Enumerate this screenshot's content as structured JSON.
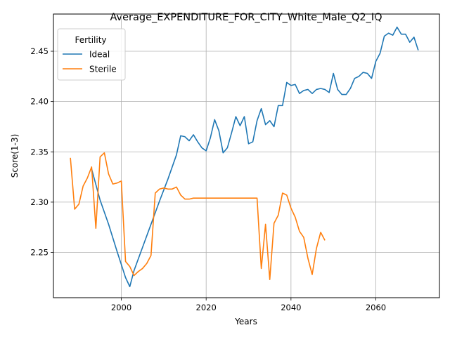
{
  "chart_data": {
    "type": "line",
    "title": "Average_EXPENDITURE_FOR_CITY_White_Male_Q2_IQ",
    "xlabel": "Years",
    "ylabel": "Score(1-3)",
    "xlim": [
      1984,
      2075
    ],
    "ylim": [
      2.205,
      2.487
    ],
    "xticks": [
      2000,
      2020,
      2040,
      2060
    ],
    "yticks": [
      2.25,
      2.3,
      2.35,
      2.4,
      2.45
    ],
    "ytick_labels": [
      "2.25",
      "2.30",
      "2.35",
      "2.40",
      "2.45"
    ],
    "grid": true,
    "legend": {
      "title": "Fertility",
      "position": "top-left"
    },
    "series": [
      {
        "name": "Ideal",
        "color": "#1f77b4",
        "x": [
          1993,
          1995,
          1997,
          1999,
          2001,
          2002,
          2003,
          2005,
          2007,
          2009,
          2011,
          2013,
          2014,
          2015,
          2016,
          2017,
          2018,
          2019,
          2020,
          2021,
          2022,
          2023,
          2024,
          2025,
          2026,
          2027,
          2028,
          2029,
          2030,
          2031,
          2032,
          2033,
          2034,
          2035,
          2036,
          2037,
          2038,
          2039,
          2040,
          2041,
          2042,
          2043,
          2044,
          2045,
          2046,
          2047,
          2048,
          2049,
          2050,
          2051,
          2052,
          2053,
          2054,
          2055,
          2056,
          2057,
          2058,
          2059,
          2060,
          2061,
          2062,
          2063,
          2064,
          2065,
          2066,
          2067,
          2068,
          2069,
          2070
        ],
        "values": [
          2.333,
          2.302,
          2.278,
          2.251,
          2.225,
          2.216,
          2.232,
          2.255,
          2.278,
          2.301,
          2.323,
          2.347,
          2.366,
          2.365,
          2.361,
          2.367,
          2.36,
          2.354,
          2.351,
          2.364,
          2.382,
          2.371,
          2.349,
          2.354,
          2.369,
          2.385,
          2.376,
          2.385,
          2.358,
          2.36,
          2.381,
          2.393,
          2.377,
          2.381,
          2.375,
          2.396,
          2.396,
          2.419,
          2.416,
          2.417,
          2.408,
          2.411,
          2.412,
          2.408,
          2.412,
          2.413,
          2.412,
          2.409,
          2.428,
          2.412,
          2.407,
          2.407,
          2.413,
          2.423,
          2.425,
          2.429,
          2.428,
          2.423,
          2.44,
          2.448,
          2.465,
          2.468,
          2.466,
          2.474,
          2.467,
          2.467,
          2.459,
          2.464,
          2.451
        ]
      },
      {
        "name": "Sterile",
        "color": "#ff7f0e",
        "x": [
          1988,
          1989,
          1990,
          1991,
          1992,
          1993,
          1994,
          1995,
          1996,
          1997,
          1998,
          1999,
          2000,
          2001,
          2002,
          2003,
          2004,
          2005,
          2006,
          2007,
          2008,
          2009,
          2010,
          2011,
          2012,
          2013,
          2014,
          2015,
          2016,
          2017,
          2018,
          2019,
          2020,
          2021,
          2022,
          2023,
          2024,
          2025,
          2026,
          2027,
          2028,
          2029,
          2030,
          2031,
          2032,
          2033,
          2034,
          2035,
          2036,
          2037,
          2038,
          2039,
          2040,
          2041,
          2042,
          2043,
          2044,
          2045,
          2046,
          2047,
          2048
        ],
        "values": [
          2.344,
          2.293,
          2.298,
          2.316,
          2.324,
          2.335,
          2.274,
          2.345,
          2.349,
          2.328,
          2.318,
          2.319,
          2.321,
          2.241,
          2.236,
          2.227,
          2.231,
          2.234,
          2.239,
          2.247,
          2.309,
          2.313,
          2.314,
          2.313,
          2.313,
          2.315,
          2.307,
          2.303,
          2.303,
          2.304,
          2.304,
          2.304,
          2.304,
          2.304,
          2.304,
          2.304,
          2.304,
          2.304,
          2.304,
          2.304,
          2.304,
          2.304,
          2.304,
          2.304,
          2.304,
          2.234,
          2.278,
          2.223,
          2.279,
          2.287,
          2.309,
          2.307,
          2.294,
          2.285,
          2.271,
          2.265,
          2.244,
          2.228,
          2.254,
          2.27,
          2.262
        ]
      }
    ]
  }
}
